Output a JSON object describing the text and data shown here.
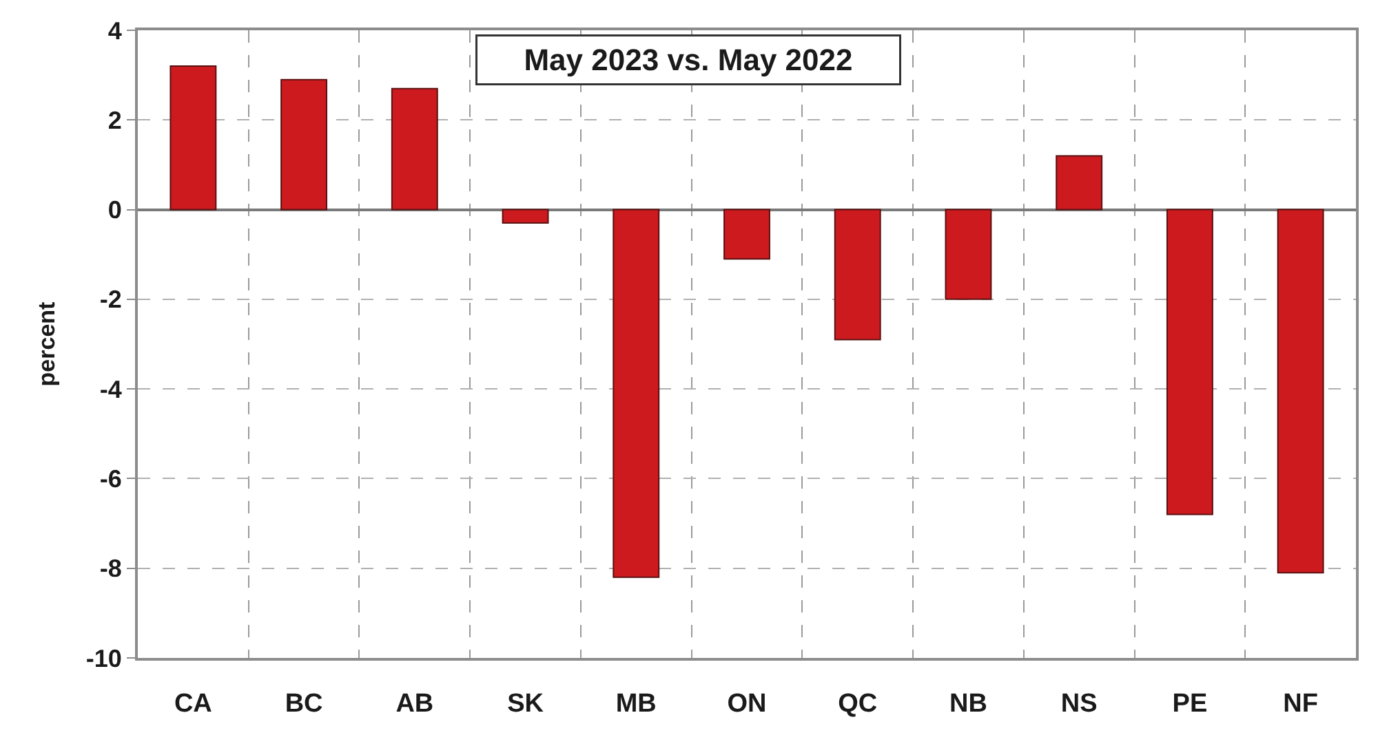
{
  "chart_data": {
    "type": "bar",
    "title": "May 2023 vs. May 2022",
    "ylabel": "percent",
    "categories": [
      "CA",
      "BC",
      "AB",
      "SK",
      "MB",
      "ON",
      "QC",
      "NB",
      "NS",
      "PE",
      "NF"
    ],
    "values": [
      3.2,
      2.9,
      2.7,
      -0.3,
      -8.2,
      -1.1,
      -2.9,
      -2.0,
      1.2,
      -6.8,
      -8.1
    ],
    "color": "#cc1a1f",
    "ylim": [
      -10,
      4
    ],
    "yticks": [
      -10,
      -8,
      -6,
      -4,
      -2,
      0,
      2,
      4
    ],
    "grid": true
  }
}
